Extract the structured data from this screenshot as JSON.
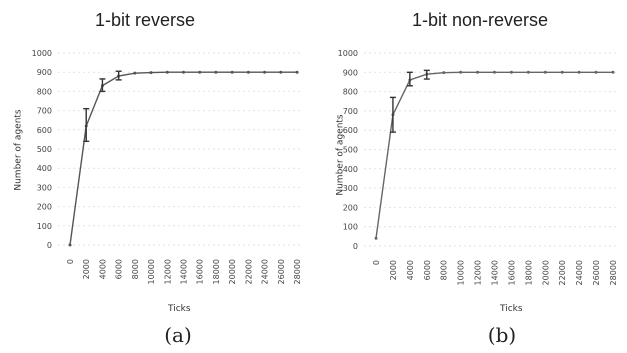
{
  "chart_data": [
    {
      "type": "line",
      "title": "1-bit reverse",
      "caption": "(a)",
      "xlabel": "Ticks",
      "ylabel": "Number of agents",
      "ylim": [
        0,
        1000
      ],
      "y_ticks": [
        0,
        100,
        200,
        300,
        400,
        500,
        600,
        700,
        800,
        900,
        1000
      ],
      "x_ticks": [
        0,
        2000,
        4000,
        6000,
        8000,
        10000,
        12000,
        14000,
        16000,
        18000,
        20000,
        22000,
        24000,
        26000,
        28000
      ],
      "grid": true,
      "x": [
        0,
        2000,
        4000,
        6000,
        8000,
        10000,
        12000,
        14000,
        16000,
        18000,
        20000,
        22000,
        24000,
        26000,
        28000
      ],
      "values": [
        0,
        620,
        830,
        880,
        895,
        898,
        900,
        900,
        900,
        900,
        900,
        900,
        900,
        900,
        900
      ],
      "error_bars": [
        [
          2000,
          540,
          710
        ],
        [
          4000,
          800,
          865
        ],
        [
          6000,
          860,
          905
        ]
      ],
      "line_color": "#555555"
    },
    {
      "type": "line",
      "title": "1-bit non-reverse",
      "caption": "(b)",
      "xlabel": "Ticks",
      "ylabel": "Number of agents",
      "ylim": [
        0,
        1000
      ],
      "y_ticks": [
        0,
        100,
        200,
        300,
        400,
        500,
        600,
        700,
        800,
        900,
        1000
      ],
      "x_ticks": [
        0,
        2000,
        4000,
        6000,
        8000,
        10000,
        12000,
        14000,
        16000,
        18000,
        20000,
        22000,
        24000,
        26000,
        28000
      ],
      "grid": true,
      "x": [
        0,
        2000,
        4000,
        6000,
        8000,
        10000,
        12000,
        14000,
        16000,
        18000,
        20000,
        22000,
        24000,
        26000,
        28000
      ],
      "values": [
        40,
        680,
        860,
        890,
        898,
        900,
        900,
        900,
        900,
        900,
        900,
        900,
        900,
        900,
        900
      ],
      "error_bars": [
        [
          2000,
          590,
          770
        ],
        [
          4000,
          830,
          900
        ],
        [
          6000,
          865,
          910
        ]
      ],
      "line_color": "#666666"
    }
  ]
}
